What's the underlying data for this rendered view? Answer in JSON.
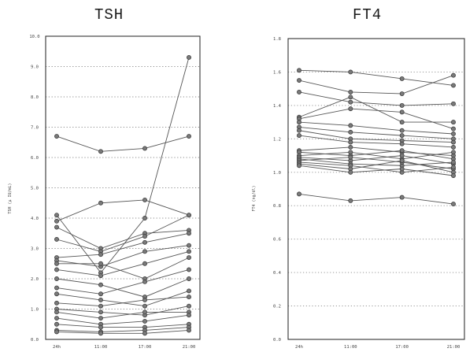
{
  "chart_data": [
    {
      "type": "line",
      "title": "TSH",
      "ylabel": "TSH (μ IU/mL)",
      "xlabel": "",
      "categories": [
        "24h",
        "11:00",
        "17:00",
        "21:00"
      ],
      "ylim": [
        0,
        10
      ],
      "yticks": [
        "0.0",
        "1.0",
        "2.0",
        "3.0",
        "4.0",
        "5.0",
        "6.0",
        "7.0",
        "8.0",
        "9.0",
        "10.0"
      ],
      "grid": true,
      "series": [
        {
          "values": [
            6.7,
            6.2,
            6.3,
            6.7
          ]
        },
        {
          "values": [
            4.1,
            2.2,
            4.0,
            9.3
          ]
        },
        {
          "values": [
            3.9,
            4.5,
            4.6,
            4.1
          ]
        },
        {
          "values": [
            3.7,
            3.0,
            3.5,
            3.6
          ]
        },
        {
          "values": [
            3.3,
            2.9,
            3.4,
            4.1
          ]
        },
        {
          "values": [
            2.7,
            2.8,
            3.2,
            3.5
          ]
        },
        {
          "values": [
            2.6,
            2.4,
            2.9,
            3.1
          ]
        },
        {
          "values": [
            2.5,
            2.5,
            2.0,
            2.7
          ]
        },
        {
          "values": [
            2.3,
            2.1,
            2.5,
            2.9
          ]
        },
        {
          "values": [
            2.0,
            1.8,
            1.4,
            2.0
          ]
        },
        {
          "values": [
            1.7,
            1.5,
            1.9,
            2.3
          ]
        },
        {
          "values": [
            1.5,
            1.3,
            1.1,
            1.6
          ]
        },
        {
          "values": [
            1.2,
            1.1,
            1.3,
            1.4
          ]
        },
        {
          "values": [
            1.0,
            0.9,
            0.8,
            1.1
          ]
        },
        {
          "values": [
            0.9,
            0.7,
            0.9,
            0.9
          ]
        },
        {
          "values": [
            0.7,
            0.5,
            0.6,
            0.8
          ]
        },
        {
          "values": [
            0.5,
            0.4,
            0.4,
            0.5
          ]
        },
        {
          "values": [
            0.3,
            0.25,
            0.3,
            0.4
          ]
        },
        {
          "values": [
            0.25,
            0.2,
            0.2,
            0.3
          ]
        }
      ]
    },
    {
      "type": "line",
      "title": "FT4",
      "ylabel": "FT4 (ng/dl)",
      "xlabel": "",
      "categories": [
        "24h",
        "11:00",
        "17:00",
        "21:00"
      ],
      "ylim": [
        0,
        1.8
      ],
      "yticks": [
        "0.0",
        "0.2",
        "0.4",
        "0.6",
        "0.8",
        "1.0",
        "1.2",
        "1.4",
        "1.6",
        "1.8"
      ],
      "grid": true,
      "series": [
        {
          "values": [
            1.61,
            1.6,
            1.56,
            1.52
          ]
        },
        {
          "values": [
            1.55,
            1.48,
            1.47,
            1.58
          ]
        },
        {
          "values": [
            1.48,
            1.42,
            1.4,
            1.41
          ]
        },
        {
          "values": [
            1.33,
            1.45,
            1.3,
            1.3
          ]
        },
        {
          "values": [
            1.32,
            1.38,
            1.36,
            1.26
          ]
        },
        {
          "values": [
            1.3,
            1.28,
            1.25,
            1.23
          ]
        },
        {
          "values": [
            1.27,
            1.24,
            1.22,
            1.2
          ]
        },
        {
          "values": [
            1.25,
            1.2,
            1.19,
            1.18
          ]
        },
        {
          "values": [
            1.22,
            1.18,
            1.17,
            1.15
          ]
        },
        {
          "values": [
            1.13,
            1.15,
            1.12,
            1.1
          ]
        },
        {
          "values": [
            1.12,
            1.1,
            1.13,
            1.08
          ]
        },
        {
          "values": [
            1.1,
            1.12,
            1.08,
            1.12
          ]
        },
        {
          "values": [
            1.09,
            1.07,
            1.1,
            1.05
          ]
        },
        {
          "values": [
            1.08,
            1.05,
            1.04,
            1.06
          ]
        },
        {
          "values": [
            1.07,
            1.09,
            1.06,
            1.02
          ]
        },
        {
          "values": [
            1.06,
            1.04,
            1.0,
            1.03
          ]
        },
        {
          "values": [
            1.05,
            1.02,
            1.07,
            1.0
          ]
        },
        {
          "values": [
            1.04,
            1.0,
            1.02,
            0.98
          ]
        },
        {
          "values": [
            0.87,
            0.83,
            0.85,
            0.81
          ]
        }
      ]
    }
  ]
}
